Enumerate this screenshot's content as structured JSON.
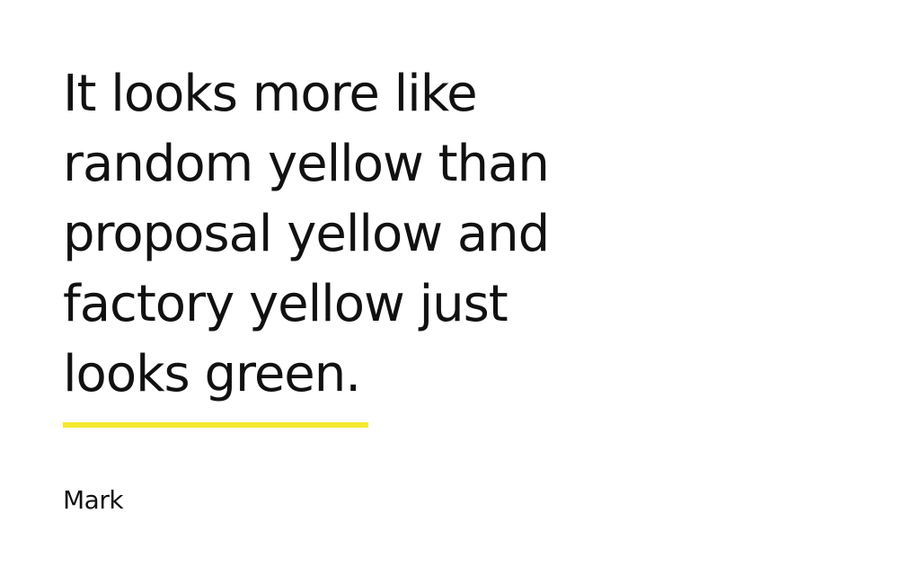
{
  "quote": {
    "text": "It looks more like\nrandom yellow than\nproposal yellow and\nfactory yellow just\nlooks green.",
    "author": "Mark"
  },
  "colors": {
    "accent": "#f6e92f",
    "text": "#111111",
    "background": "#ffffff"
  }
}
